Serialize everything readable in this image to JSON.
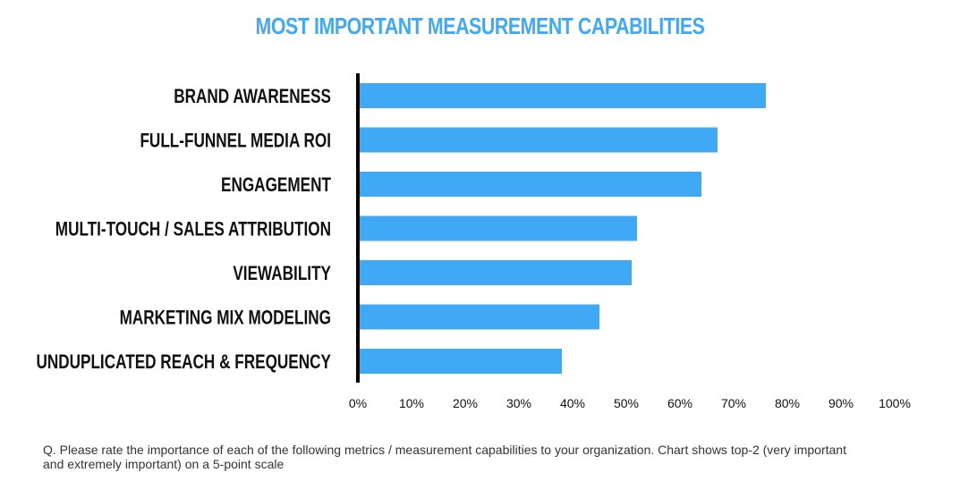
{
  "chart_data": {
    "type": "bar",
    "orientation": "horizontal",
    "title": "MOST IMPORTANT MEASUREMENT CAPABILITIES",
    "categories": [
      "BRAND AWARENESS",
      "FULL-FUNNEL MEDIA ROI",
      "ENGAGEMENT",
      "MULTI-TOUCH / SALES ATTRIBUTION",
      "VIEWABILITY",
      "MARKETING MIX MODELING",
      "UNDUPLICATED REACH & FREQUENCY"
    ],
    "values": [
      76,
      67,
      64,
      52,
      51,
      45,
      38
    ],
    "xlim": [
      0,
      100
    ],
    "x_ticks": [
      "0%",
      "10%",
      "20%",
      "30%",
      "40%",
      "50%",
      "60%",
      "70%",
      "80%",
      "90%",
      "100%"
    ],
    "grid": false,
    "bar_color": "#3fa9f5",
    "axis_color": "#000000"
  },
  "footnote": "Q. Please rate the importance of each of the following metrics / measurement capabilities to your organization. Chart shows top-2 (very important and extremely important) on a 5-point scale"
}
